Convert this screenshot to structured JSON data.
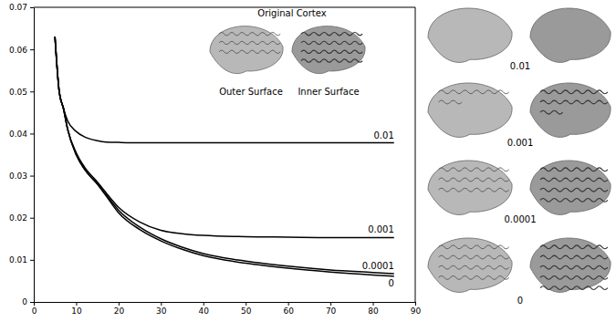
{
  "chart_data": {
    "type": "line",
    "x": [
      5,
      6,
      7,
      8,
      10,
      12,
      15,
      17,
      20,
      25,
      30,
      35,
      40,
      50,
      60,
      70,
      80,
      85
    ],
    "series": [
      {
        "name": "0.01",
        "color": "#000000",
        "values": [
          0.063,
          0.05,
          0.046,
          0.043,
          0.0405,
          0.0392,
          0.0383,
          0.038,
          0.0379,
          0.0378,
          0.0378,
          0.0378,
          0.0378,
          0.0378,
          0.0378,
          0.0378,
          0.0378,
          0.0378
        ]
      },
      {
        "name": "0.001",
        "color": "#000000",
        "values": [
          0.063,
          0.05,
          0.046,
          0.041,
          0.0355,
          0.032,
          0.0285,
          0.026,
          0.0225,
          0.019,
          0.017,
          0.0162,
          0.0158,
          0.0155,
          0.0154,
          0.0153,
          0.0153,
          0.0153
        ]
      },
      {
        "name": "0.0001",
        "color": "#000000",
        "values": [
          0.063,
          0.05,
          0.046,
          0.041,
          0.035,
          0.0315,
          0.028,
          0.0255,
          0.0218,
          0.0178,
          0.015,
          0.013,
          0.0115,
          0.0097,
          0.0085,
          0.0076,
          0.007,
          0.0067
        ]
      },
      {
        "name": "0",
        "color": "#000000",
        "values": [
          0.063,
          0.05,
          0.046,
          0.041,
          0.035,
          0.0315,
          0.028,
          0.0253,
          0.0212,
          0.0172,
          0.0145,
          0.0125,
          0.011,
          0.0092,
          0.008,
          0.0071,
          0.0064,
          0.0061
        ]
      }
    ],
    "xlim": [
      0,
      90
    ],
    "ylim": [
      0,
      0.07
    ],
    "xticks": [
      0,
      10,
      20,
      30,
      40,
      50,
      60,
      70,
      80,
      90
    ],
    "yticks": [
      0,
      0.01,
      0.02,
      0.03,
      0.04,
      0.05,
      0.06,
      0.07
    ],
    "annotations": {
      "inset_title": "Original Cortex",
      "inset_labels": [
        "Outer Surface",
        "Inner Surface"
      ],
      "panel_labels": [
        "0.01",
        "0.001",
        "0.0001",
        "0"
      ]
    }
  }
}
